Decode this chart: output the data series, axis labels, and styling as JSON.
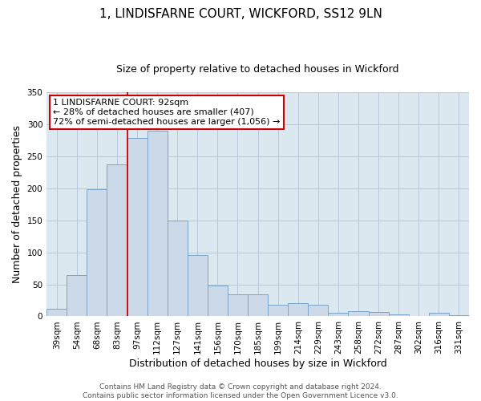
{
  "title": "1, LINDISFARNE COURT, WICKFORD, SS12 9LN",
  "subtitle": "Size of property relative to detached houses in Wickford",
  "xlabel": "Distribution of detached houses by size in Wickford",
  "ylabel": "Number of detached properties",
  "bar_color": "#ccd9e8",
  "bar_edge_color": "#7ba3c8",
  "categories": [
    "39sqm",
    "54sqm",
    "68sqm",
    "83sqm",
    "97sqm",
    "112sqm",
    "127sqm",
    "141sqm",
    "156sqm",
    "170sqm",
    "185sqm",
    "199sqm",
    "214sqm",
    "229sqm",
    "243sqm",
    "258sqm",
    "272sqm",
    "287sqm",
    "302sqm",
    "316sqm",
    "331sqm"
  ],
  "values": [
    12,
    65,
    198,
    237,
    278,
    290,
    150,
    96,
    48,
    35,
    35,
    18,
    20,
    18,
    5,
    8,
    7,
    3,
    0,
    5,
    2
  ],
  "ylim": [
    0,
    350
  ],
  "yticks": [
    0,
    50,
    100,
    150,
    200,
    250,
    300,
    350
  ],
  "vline_x_index": 4,
  "vline_color": "#cc0000",
  "annotation_title": "1 LINDISFARNE COURT: 92sqm",
  "annotation_line2": "← 28% of detached houses are smaller (407)",
  "annotation_line3": "72% of semi-detached houses are larger (1,056) →",
  "annotation_box_color": "#ffffff",
  "annotation_border_color": "#cc0000",
  "footer1": "Contains HM Land Registry data © Crown copyright and database right 2024.",
  "footer2": "Contains public sector information licensed under the Open Government Licence v3.0.",
  "background_color": "#ffffff",
  "plot_bg_color": "#dce8f0",
  "grid_color": "#b8c8dc",
  "title_fontsize": 11,
  "subtitle_fontsize": 9,
  "xlabel_fontsize": 9,
  "ylabel_fontsize": 9,
  "tick_fontsize": 7.5,
  "annotation_fontsize": 8,
  "footer_fontsize": 6.5
}
